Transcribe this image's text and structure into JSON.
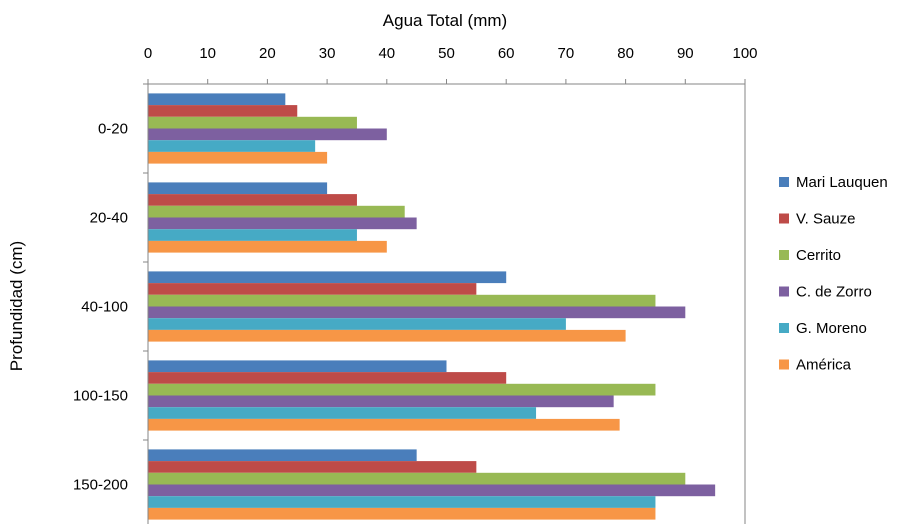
{
  "chart_data": {
    "type": "bar",
    "orientation": "horizontal",
    "title": "",
    "xlabel": "Agua Total (mm)",
    "ylabel": "Profundidad (cm)",
    "xlim": [
      0,
      100
    ],
    "xticks": [
      "0",
      "10",
      "20",
      "30",
      "40",
      "50",
      "60",
      "70",
      "80",
      "90",
      "100"
    ],
    "x_axis_position": "top",
    "grid": false,
    "legend_position": "right",
    "categories": [
      "0-20",
      "20-40",
      "40-100",
      "100-150",
      "150-200"
    ],
    "series": [
      {
        "name": "Mari Lauquen",
        "color": "#4a7ebb",
        "values": [
          23,
          30,
          60,
          50,
          45
        ]
      },
      {
        "name": "V. Sauze",
        "color": "#be4b48",
        "values": [
          25,
          35,
          55,
          60,
          55
        ]
      },
      {
        "name": "Cerrito",
        "color": "#98b954",
        "values": [
          35,
          43,
          85,
          85,
          90
        ]
      },
      {
        "name": "C. de Zorro",
        "color": "#7d60a0",
        "values": [
          40,
          45,
          90,
          78,
          95
        ]
      },
      {
        "name": "G. Moreno",
        "color": "#46aac5",
        "values": [
          28,
          35,
          70,
          65,
          85
        ]
      },
      {
        "name": "América",
        "color": "#f79646",
        "values": [
          30,
          40,
          80,
          79,
          85
        ]
      }
    ]
  }
}
